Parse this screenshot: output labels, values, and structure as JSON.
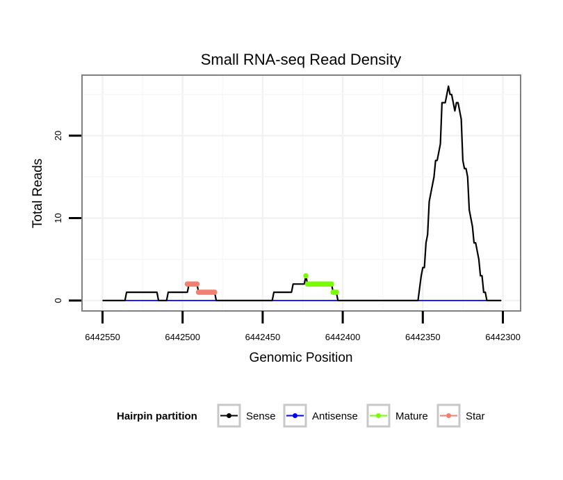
{
  "chart_data": {
    "type": "line",
    "title": "Small RNA-seq Read Density",
    "xlabel": "Genomic Position",
    "ylabel": "Total Reads",
    "xlim": [
      6442560,
      6442290
    ],
    "ylim": [
      -1.2,
      27.5
    ],
    "x_ticks": [
      6442550,
      6442500,
      6442450,
      6442400,
      6442350,
      6442300
    ],
    "x_tick_labels": [
      "6442550",
      "6442500",
      "6442450",
      "6442400",
      "6442350",
      "6442300"
    ],
    "y_ticks": [
      0,
      10,
      20
    ],
    "y_tick_labels": [
      "0",
      "10",
      "20"
    ],
    "grid": true,
    "legend": {
      "title": "Hairpin partition",
      "position": "bottom",
      "entries": [
        {
          "name": "Sense",
          "color": "#000000"
        },
        {
          "name": "Antisense",
          "color": "#0000ff"
        },
        {
          "name": "Mature",
          "color": "#7cfc00"
        },
        {
          "name": "Star",
          "color": "#f08070"
        }
      ]
    },
    "series": [
      {
        "name": "Sense",
        "color": "#000000",
        "style": "line",
        "points": [
          [
            6442550,
            0
          ],
          [
            6442536,
            0
          ],
          [
            6442535,
            1
          ],
          [
            6442516,
            1
          ],
          [
            6442515,
            0
          ],
          [
            6442510,
            0
          ],
          [
            6442509,
            1
          ],
          [
            6442497,
            1
          ],
          [
            6442496,
            2
          ],
          [
            6442491,
            2
          ],
          [
            6442490,
            1
          ],
          [
            6442480,
            1
          ],
          [
            6442479,
            0
          ],
          [
            6442460,
            0
          ],
          [
            6442444,
            0
          ],
          [
            6442443,
            1
          ],
          [
            6442432,
            1
          ],
          [
            6442431,
            2
          ],
          [
            6442424,
            2
          ],
          [
            6442423,
            3
          ],
          [
            6442422,
            2
          ],
          [
            6442407,
            2
          ],
          [
            6442406,
            1
          ],
          [
            6442404,
            1
          ],
          [
            6442403,
            0
          ],
          [
            6442353,
            0
          ],
          [
            6442351,
            3
          ],
          [
            6442350,
            4
          ],
          [
            6442349,
            4
          ],
          [
            6442348,
            7
          ],
          [
            6442347,
            8
          ],
          [
            6442346,
            12
          ],
          [
            6442345,
            13
          ],
          [
            6442344,
            14
          ],
          [
            6442343,
            15
          ],
          [
            6442342,
            17
          ],
          [
            6442341,
            17
          ],
          [
            6442340,
            18
          ],
          [
            6442339,
            19
          ],
          [
            6442338,
            24
          ],
          [
            6442337,
            24
          ],
          [
            6442336,
            24
          ],
          [
            6442335,
            25
          ],
          [
            6442334,
            26
          ],
          [
            6442333,
            25
          ],
          [
            6442332,
            25
          ],
          [
            6442331,
            24
          ],
          [
            6442330,
            23
          ],
          [
            6442329,
            24
          ],
          [
            6442328,
            24
          ],
          [
            6442327,
            23
          ],
          [
            6442326,
            22
          ],
          [
            6442325,
            17
          ],
          [
            6442324,
            16
          ],
          [
            6442323,
            16
          ],
          [
            6442322,
            15
          ],
          [
            6442321,
            11
          ],
          [
            6442320,
            10
          ],
          [
            6442319,
            9
          ],
          [
            6442318,
            7
          ],
          [
            6442317,
            7
          ],
          [
            6442316,
            6
          ],
          [
            6442315,
            5
          ],
          [
            6442314,
            3
          ],
          [
            6442313,
            3
          ],
          [
            6442312,
            1
          ],
          [
            6442311,
            1
          ],
          [
            6442310,
            0
          ],
          [
            6442301,
            0
          ]
        ]
      },
      {
        "name": "Antisense",
        "color": "#0000ff",
        "style": "line",
        "points": [
          [
            6442536,
            0
          ],
          [
            6442301,
            0
          ]
        ]
      },
      {
        "name": "Mature",
        "color": "#7cfc00",
        "style": "points",
        "points": [
          [
            6442423,
            3
          ],
          [
            6442422,
            2
          ],
          [
            6442421,
            2
          ],
          [
            6442420,
            2
          ],
          [
            6442419,
            2
          ],
          [
            6442418,
            2
          ],
          [
            6442417,
            2
          ],
          [
            6442416,
            2
          ],
          [
            6442415,
            2
          ],
          [
            6442414,
            2
          ],
          [
            6442413,
            2
          ],
          [
            6442412,
            2
          ],
          [
            6442411,
            2
          ],
          [
            6442410,
            2
          ],
          [
            6442409,
            2
          ],
          [
            6442408,
            2
          ],
          [
            6442407,
            2
          ],
          [
            6442406,
            1
          ],
          [
            6442405,
            1
          ],
          [
            6442404,
            1
          ]
        ]
      },
      {
        "name": "Star",
        "color": "#f08070",
        "style": "points",
        "points": [
          [
            6442497,
            2
          ],
          [
            6442496,
            2
          ],
          [
            6442495,
            2
          ],
          [
            6442494,
            2
          ],
          [
            6442493,
            2
          ],
          [
            6442492,
            2
          ],
          [
            6442491,
            2
          ],
          [
            6442490,
            1
          ],
          [
            6442489,
            1
          ],
          [
            6442488,
            1
          ],
          [
            6442487,
            1
          ],
          [
            6442486,
            1
          ],
          [
            6442485,
            1
          ],
          [
            6442484,
            1
          ],
          [
            6442483,
            1
          ],
          [
            6442482,
            1
          ],
          [
            6442481,
            1
          ],
          [
            6442480,
            1
          ]
        ]
      }
    ]
  }
}
